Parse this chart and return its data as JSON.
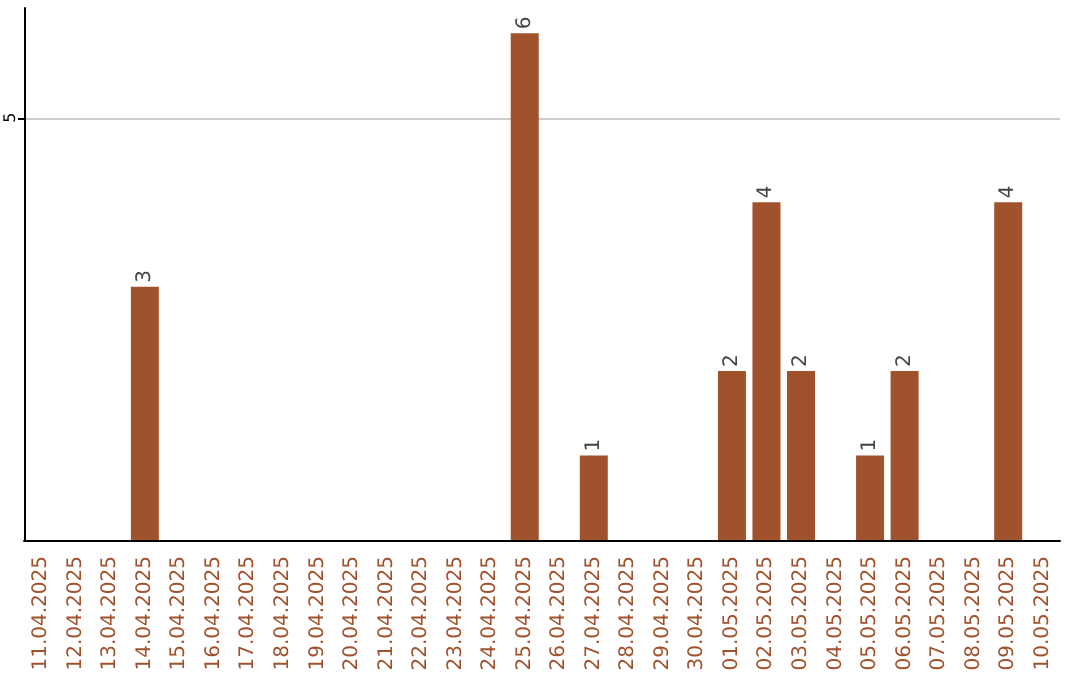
{
  "chart_data": {
    "type": "bar",
    "categories": [
      "11.04.2025",
      "12.04.2025",
      "13.04.2025",
      "14.04.2025",
      "15.04.2025",
      "16.04.2025",
      "17.04.2025",
      "18.04.2025",
      "19.04.2025",
      "20.04.2025",
      "21.04.2025",
      "22.04.2025",
      "23.04.2025",
      "24.04.2025",
      "25.04.2025",
      "26.04.2025",
      "27.04.2025",
      "28.04.2025",
      "29.04.2025",
      "30.04.2025",
      "01.05.2025",
      "02.05.2025",
      "03.05.2025",
      "04.05.2025",
      "05.05.2025",
      "06.05.2025",
      "07.05.2025",
      "08.05.2025",
      "09.05.2025",
      "10.05.2025"
    ],
    "values": [
      0,
      0,
      0,
      3,
      0,
      0,
      0,
      0,
      0,
      0,
      0,
      0,
      0,
      0,
      6,
      0,
      1,
      0,
      0,
      0,
      2,
      4,
      2,
      0,
      1,
      2,
      0,
      0,
      4,
      0
    ],
    "value_labels": [
      null,
      null,
      null,
      "3",
      null,
      null,
      null,
      null,
      null,
      null,
      null,
      null,
      null,
      null,
      "6",
      null,
      "1",
      null,
      null,
      null,
      "2",
      "4",
      "2",
      null,
      "1",
      "2",
      null,
      null,
      "4",
      null
    ],
    "color": "#a0522d",
    "ylim": [
      0,
      6.3
    ],
    "yticks": [
      5
    ],
    "grid": "y"
  }
}
